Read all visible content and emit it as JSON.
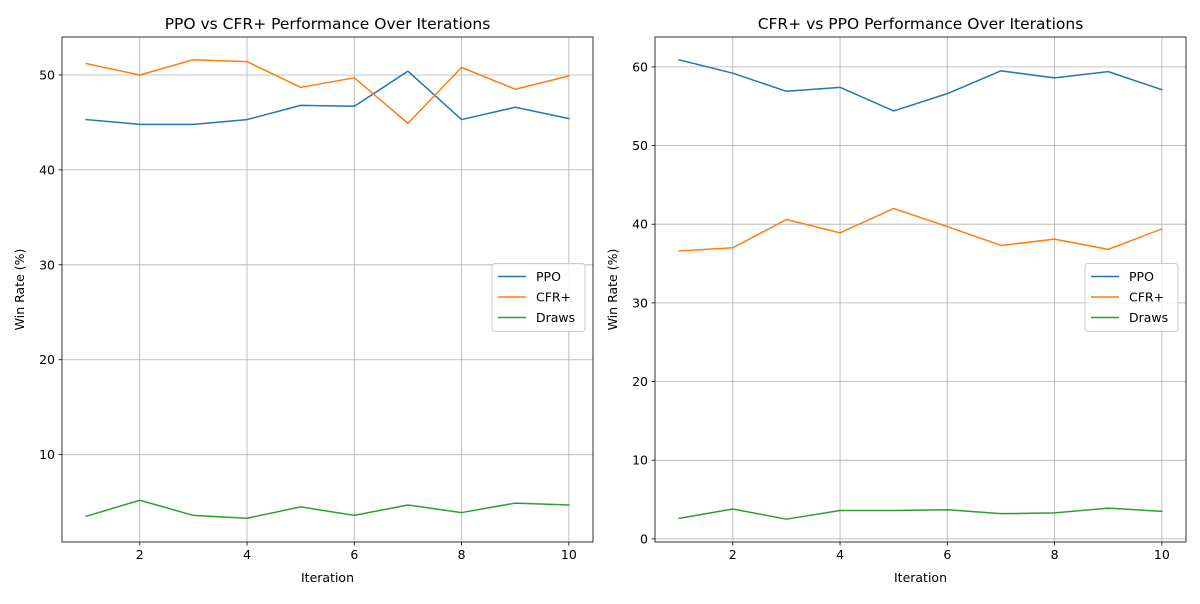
{
  "colors": {
    "PPO": "#1f77b4",
    "CFR+": "#ff7f0e",
    "Draws": "#2ca02c"
  },
  "chart_data": [
    {
      "type": "line",
      "title": "PPO vs CFR+ Performance Over Iterations",
      "xlabel": "Iteration",
      "ylabel": "Win Rate (%)",
      "x": [
        1,
        2,
        3,
        4,
        5,
        6,
        7,
        8,
        9,
        10
      ],
      "xlim": [
        0.55,
        10.45
      ],
      "ylim": [
        0.8,
        54.0
      ],
      "xticks": [
        2,
        4,
        6,
        8,
        10
      ],
      "yticks": [
        10,
        20,
        30,
        40,
        50
      ],
      "grid": true,
      "legend": "center-right",
      "series": [
        {
          "name": "PPO",
          "values": [
            45.3,
            44.8,
            44.8,
            45.3,
            46.8,
            46.7,
            50.4,
            45.3,
            46.6,
            45.4
          ]
        },
        {
          "name": "CFR+",
          "values": [
            51.2,
            50.0,
            51.6,
            51.4,
            48.7,
            49.7,
            44.9,
            50.8,
            48.5,
            49.9
          ]
        },
        {
          "name": "Draws",
          "values": [
            3.5,
            5.2,
            3.6,
            3.3,
            4.5,
            3.6,
            4.7,
            3.9,
            4.9,
            4.7
          ]
        }
      ]
    },
    {
      "type": "line",
      "title": "CFR+ vs PPO Performance Over Iterations",
      "xlabel": "Iteration",
      "ylabel": "Win Rate (%)",
      "x": [
        1,
        2,
        3,
        4,
        5,
        6,
        7,
        8,
        9,
        10
      ],
      "xlim": [
        0.55,
        10.45
      ],
      "ylim": [
        -0.4,
        63.8
      ],
      "xticks": [
        2,
        4,
        6,
        8,
        10
      ],
      "yticks": [
        0,
        10,
        20,
        30,
        40,
        50,
        60
      ],
      "grid": true,
      "legend": "center-right",
      "series": [
        {
          "name": "PPO",
          "values": [
            60.9,
            59.2,
            56.9,
            57.4,
            54.4,
            56.6,
            59.5,
            58.6,
            59.4,
            57.1
          ]
        },
        {
          "name": "CFR+",
          "values": [
            36.6,
            37.0,
            40.6,
            38.9,
            42.0,
            39.7,
            37.3,
            38.1,
            36.8,
            39.4
          ]
        },
        {
          "name": "Draws",
          "values": [
            2.6,
            3.8,
            2.5,
            3.6,
            3.6,
            3.7,
            3.2,
            3.3,
            3.9,
            3.5
          ]
        }
      ]
    }
  ]
}
